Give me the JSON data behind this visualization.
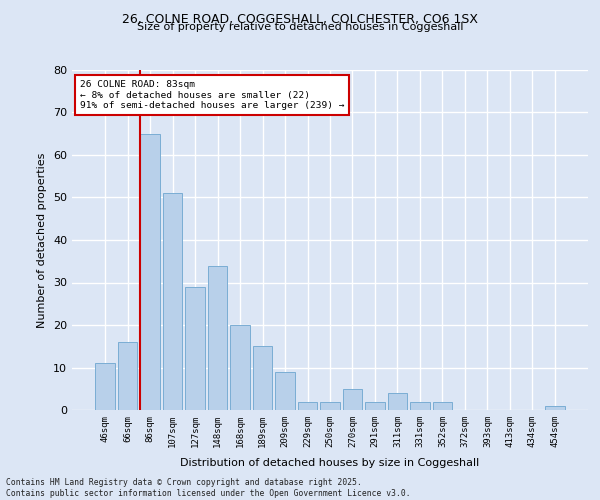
{
  "title_line1": "26, COLNE ROAD, COGGESHALL, COLCHESTER, CO6 1SX",
  "title_line2": "Size of property relative to detached houses in Coggeshall",
  "xlabel": "Distribution of detached houses by size in Coggeshall",
  "ylabel": "Number of detached properties",
  "bar_color": "#b8d0ea",
  "bar_edge_color": "#7aadd4",
  "background_color": "#dce6f5",
  "figure_color": "#dce6f5",
  "grid_color": "#ffffff",
  "categories": [
    "46sqm",
    "66sqm",
    "86sqm",
    "107sqm",
    "127sqm",
    "148sqm",
    "168sqm",
    "189sqm",
    "209sqm",
    "229sqm",
    "250sqm",
    "270sqm",
    "291sqm",
    "311sqm",
    "331sqm",
    "352sqm",
    "372sqm",
    "393sqm",
    "413sqm",
    "434sqm",
    "454sqm"
  ],
  "values": [
    11,
    16,
    65,
    51,
    29,
    34,
    20,
    15,
    9,
    2,
    2,
    5,
    2,
    4,
    2,
    2,
    0,
    0,
    0,
    0,
    1
  ],
  "vline_x_index": 1.575,
  "vline_color": "#cc0000",
  "ylim": [
    0,
    80
  ],
  "yticks": [
    0,
    10,
    20,
    30,
    40,
    50,
    60,
    70,
    80
  ],
  "annotation_text": "26 COLNE ROAD: 83sqm\n← 8% of detached houses are smaller (22)\n91% of semi-detached houses are larger (239) →",
  "annotation_box_color": "#cc0000",
  "footer_line1": "Contains HM Land Registry data © Crown copyright and database right 2025.",
  "footer_line2": "Contains public sector information licensed under the Open Government Licence v3.0."
}
